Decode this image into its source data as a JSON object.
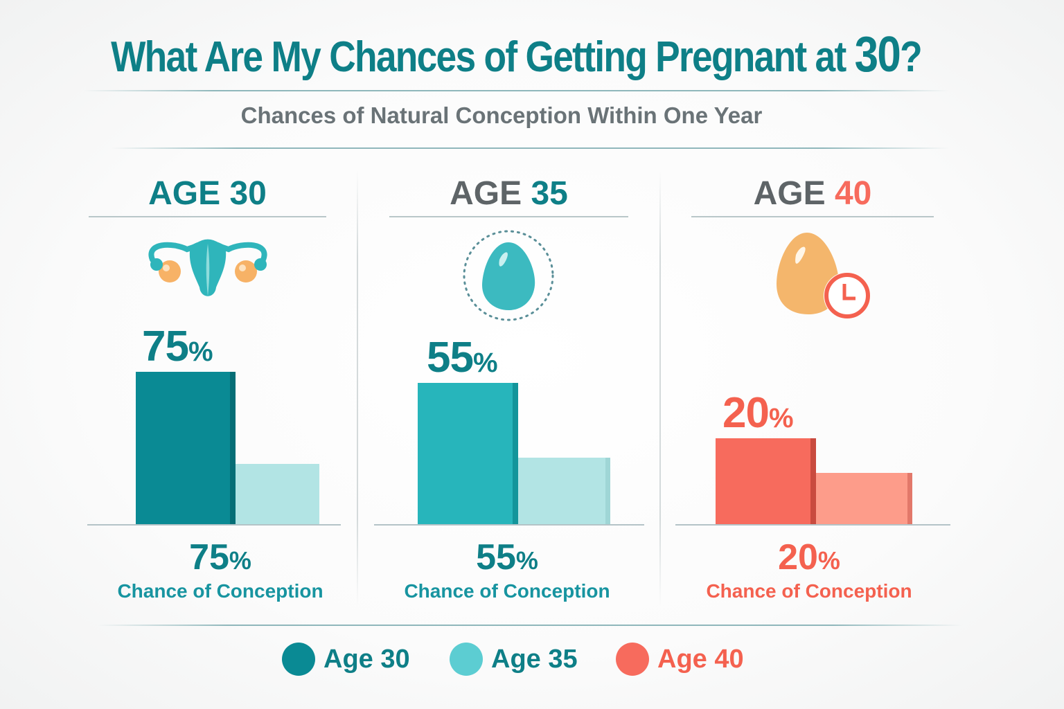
{
  "title": {
    "text": "What Are My Chances of Getting Pregnant at",
    "number": "30",
    "suffix": "?"
  },
  "subtitle": "Chances of Natural Conception Within One Year",
  "colors": {
    "age30": "#0a8a94",
    "age30_light": "#b2e4e4",
    "age35": "#27b5bb",
    "age35_light": "#b2e4e4",
    "age40": "#f76b5d",
    "age40_light": "#fd9c8a",
    "heading_gray": "#5e6467"
  },
  "chart_data": {
    "type": "bar",
    "title": "What Are My Chances of Getting Pregnant at 30?",
    "subtitle": "Chances of Natural Conception Within One Year",
    "categories": [
      "AGE 30",
      "AGE 35",
      "AGE 40"
    ],
    "series": [
      {
        "name": "Chance of Conception",
        "values": [
          75,
          55,
          20
        ]
      },
      {
        "values": [
          30,
          26,
          12
        ]
      }
    ],
    "unit": "%",
    "grid": false,
    "legend_placement": "bottom"
  },
  "panels": [
    {
      "age_word": "AGE",
      "age_num": "30",
      "icon": "uterus-icon",
      "value": "75",
      "pct": "%",
      "caption": "Chance of Conception"
    },
    {
      "age_word": "AGE",
      "age_num": "35",
      "icon": "egg-icon",
      "value": "55",
      "pct": "%",
      "caption": "Chance of Conception"
    },
    {
      "age_word": "AGE",
      "age_num": "40",
      "icon": "egg-clock-icon",
      "value": "20",
      "pct": "%",
      "caption": "Chance of Conception"
    }
  ],
  "legend": [
    {
      "label": "Age 30",
      "color": "#0a8a94"
    },
    {
      "label": "Age 35",
      "color": "#5ccdd2"
    },
    {
      "label": "Age 40",
      "color": "#f76b5d"
    }
  ]
}
